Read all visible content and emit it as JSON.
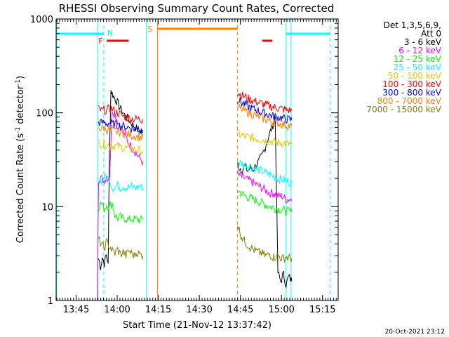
{
  "chart_data": {
    "type": "line",
    "title": "RHESSI Observing Summary Count Rates, Corrected",
    "xlabel": "Start Time (21-Nov-12 13:37:42)",
    "ylabel": "Corrected Count Rate (s⁻¹ detector⁻¹)",
    "ylabel_main": "Corrected Count Rate (s",
    "ylabel_sup": "-1",
    "ylabel_rest": " detector",
    "ylabel_sup2": "-1",
    "ylabel_end": ")",
    "x_unit": "minutes from 13:37:42",
    "xlim": [
      0,
      103
    ],
    "ylim": [
      1,
      1000
    ],
    "yscale": "log",
    "x_ticks": [
      {
        "v": 7.3,
        "label": "13:45"
      },
      {
        "v": 22.3,
        "label": "14:00"
      },
      {
        "v": 37.3,
        "label": "14:15"
      },
      {
        "v": 52.3,
        "label": "14:30"
      },
      {
        "v": 67.3,
        "label": "14:45"
      },
      {
        "v": 82.3,
        "label": "15:00"
      },
      {
        "v": 97.3,
        "label": "15:15"
      }
    ],
    "y_ticks": [
      {
        "v": 1,
        "label": "1"
      },
      {
        "v": 10,
        "label": "10"
      },
      {
        "v": 100,
        "label": "100"
      },
      {
        "v": 1000,
        "label": "1000"
      }
    ],
    "legend": {
      "header1": "Det 1,3,5,6,9,",
      "header2": "Att 0",
      "placement": "right"
    },
    "series": [
      {
        "name": "3 - 6 keV",
        "color": "#000000",
        "segments": [
          {
            "x": [
              15.5,
              16.2,
              16.9,
              17.6,
              18.3,
              19.0,
              19.5,
              20.0,
              20.5,
              21.0,
              22.0,
              23.0,
              24.0,
              25.0,
              26.0,
              27.0,
              28.0,
              29.0,
              30.0,
              31.0,
              31.7
            ],
            "y": [
              2.8,
              2.3,
              2.9,
              2.5,
              3.0,
              2.6,
              40,
              175,
              160,
              150,
              135,
              118,
              105,
              95,
              88,
              82,
              75,
              70,
              66,
              62,
              58
            ]
          },
          {
            "x": [
              66.2,
              67.0,
              68.0,
              69.0,
              70.0,
              71.0,
              72.0,
              73.0,
              74.0,
              75.0,
              76.0,
              77.0,
              78.0,
              78.8,
              79.5,
              80.0,
              81.0,
              82.0,
              83.0,
              84.0,
              85.0,
              86.1
            ],
            "y": [
              28,
              26,
              25,
              27,
              24,
              26,
              25,
              28,
              30,
              34,
              40,
              50,
              60,
              70,
              80,
              95,
              2.0,
              1.6,
              1.9,
              1.5,
              1.8,
              1.6
            ]
          }
        ]
      },
      {
        "name": "6 - 12 keV",
        "color": "#ff00ff",
        "segments": [
          {
            "x": [
              15.0,
              15.5,
              16.5,
              17.5,
              18.5,
              19.5,
              20.5,
              21.5,
              22.5,
              23.5,
              24.5,
              25.5,
              26.5,
              27.5,
              28.5,
              29.5,
              30.5,
              31.7
            ],
            "y": [
              1.0,
              20,
              20,
              19,
              21,
              20,
              110,
              95,
              82,
              72,
              62,
              55,
              48,
              44,
              40,
              36,
              33,
              30
            ]
          },
          {
            "x": [
              66.2,
              67.5,
              69.0,
              70.5,
              72.0,
              73.5,
              75.0,
              76.5,
              78.0,
              79.5,
              81.0,
              82.5,
              84.0,
              86.1
            ],
            "y": [
              22,
              21,
              20,
              19,
              18,
              17,
              16,
              15,
              14,
              14,
              13,
              13,
              12,
              12
            ]
          }
        ]
      },
      {
        "name": "12 - 25 keV",
        "color": "#00ff00",
        "segments": [
          {
            "x": [
              15.5,
              16.5,
              17.5,
              18.5,
              19.5,
              20.5,
              21.5,
              22.5,
              23.5,
              24.5,
              25.5,
              26.5,
              27.5,
              28.5,
              29.5,
              30.5,
              31.7
            ],
            "y": [
              10,
              11,
              9.5,
              10.5,
              10,
              11,
              8.0,
              7.5,
              7.8,
              7.3,
              7.6,
              7.2,
              7.5,
              7.3,
              7.4,
              7.2,
              7.3
            ]
          },
          {
            "x": [
              66.2,
              67.5,
              69.0,
              70.5,
              72.0,
              73.5,
              75.0,
              76.5,
              78.0,
              79.5,
              81.0,
              82.5,
              84.0,
              86.1
            ],
            "y": [
              15,
              14,
              13,
              12.5,
              12,
              11.5,
              11,
              10.5,
              10,
              9.8,
              9.5,
              9.3,
              9.0,
              8.8
            ]
          }
        ]
      },
      {
        "name": "25 - 50 keV",
        "color": "#00ffff",
        "segments": [
          {
            "x": [
              15.5,
              16.5,
              17.5,
              18.5,
              19.5,
              20.5,
              21.5,
              22.5,
              23.5,
              24.5,
              25.5,
              26.5,
              27.5,
              28.5,
              29.5,
              30.5,
              31.7
            ],
            "y": [
              20,
              19,
              21,
              20,
              20,
              16,
              16,
              17,
              16,
              16.5,
              16,
              16,
              16.5,
              16,
              16,
              16.5,
              16
            ]
          },
          {
            "x": [
              66.2,
              67.5,
              69.0,
              70.5,
              72.0,
              73.5,
              75.0,
              76.5,
              78.0,
              79.5,
              81.0,
              82.5,
              84.0,
              86.1
            ],
            "y": [
              30,
              29,
              28,
              27,
              26,
              25,
              24,
              23,
              22,
              21,
              20,
              19.5,
              19,
              18
            ]
          }
        ]
      },
      {
        "name": "50 - 100 keV",
        "color": "#e6c800",
        "segments": [
          {
            "x": [
              15.5,
              16.5,
              17.5,
              18.5,
              19.5,
              20.5,
              21.5,
              22.5,
              23.5,
              24.5,
              25.5,
              26.5,
              27.5,
              28.5,
              29.5,
              30.5,
              31.7
            ],
            "y": [
              48,
              47,
              46,
              46,
              45,
              45,
              44,
              44,
              43,
              43,
              42,
              42,
              41,
              41,
              40,
              40,
              39
            ]
          },
          {
            "x": [
              66.2,
              67.5,
              69.0,
              70.5,
              72.0,
              73.5,
              75.0,
              76.5,
              78.0,
              79.5,
              81.0,
              82.5,
              84.0,
              86.1
            ],
            "y": [
              60,
              58,
              56,
              55,
              54,
              53,
              52,
              51,
              50,
              49,
              48,
              48,
              47,
              46
            ]
          }
        ]
      },
      {
        "name": "100 - 300 keV",
        "color": "#ff0000",
        "segments": [
          {
            "x": [
              15.5,
              16.5,
              17.5,
              18.5,
              19.5,
              20.5,
              21.5,
              22.5,
              23.5,
              24.5,
              25.5,
              26.5,
              27.5,
              28.5,
              29.5,
              30.5,
              31.7
            ],
            "y": [
              110,
              105,
              108,
              106,
              112,
              110,
              104,
              100,
              96,
              92,
              90,
              88,
              87,
              86,
              86,
              85,
              85
            ]
          },
          {
            "x": [
              66.2,
              67.5,
              69.0,
              70.5,
              72.0,
              73.5,
              75.0,
              76.5,
              78.0,
              79.5,
              81.0,
              82.5,
              84.0,
              86.1
            ],
            "y": [
              165,
              155,
              148,
              140,
              135,
              130,
              126,
              122,
              118,
              115,
              113,
              110,
              108,
              105
            ]
          }
        ]
      },
      {
        "name": "300 - 800 keV",
        "color": "#0000ff",
        "segments": [
          {
            "x": [
              15.5,
              16.5,
              17.5,
              18.5,
              19.5,
              20.5,
              21.5,
              22.5,
              23.5,
              24.5,
              25.5,
              26.5,
              27.5,
              28.5,
              29.5,
              30.5,
              31.7
            ],
            "y": [
              80,
              78,
              79,
              77,
              78,
              76,
              75,
              74,
              73,
              72,
              71,
              70,
              69,
              68,
              67,
              66,
              66
            ]
          },
          {
            "x": [
              66.2,
              67.5,
              69.0,
              70.5,
              72.0,
              73.5,
              75.0,
              76.5,
              78.0,
              79.5,
              81.0,
              82.5,
              84.0,
              86.1
            ],
            "y": [
              140,
              130,
              122,
              115,
              110,
              106,
              102,
              98,
              95,
              92,
              90,
              88,
              86,
              84
            ]
          }
        ]
      },
      {
        "name": "800 - 7000 keV",
        "color": "#ff8000",
        "segments": [
          {
            "x": [
              15.5,
              16.5,
              17.5,
              18.5,
              19.5,
              20.5,
              21.5,
              22.5,
              23.5,
              24.5,
              25.5,
              26.5,
              27.5,
              28.5,
              29.5,
              30.5,
              31.7
            ],
            "y": [
              70,
              68,
              69,
              67,
              66,
              65,
              64,
              63,
              62,
              61,
              60,
              59,
              58,
              57,
              56,
              55,
              55
            ]
          },
          {
            "x": [
              66.2,
              67.5,
              69.0,
              70.5,
              72.0,
              73.5,
              75.0,
              76.5,
              78.0,
              79.5,
              81.0,
              82.5,
              84.0,
              86.1
            ],
            "y": [
              115,
              110,
              105,
              100,
              96,
              92,
              88,
              85,
              82,
              80,
              78,
              76,
              74,
              72
            ]
          }
        ]
      },
      {
        "name": "7000 - 15000 keV",
        "color": "#808000",
        "segments": [
          {
            "x": [
              15.5,
              16.5,
              17.5,
              18.5,
              19.5,
              20.5,
              21.5,
              22.5,
              23.5,
              24.5,
              25.5,
              26.5,
              27.5,
              28.5,
              29.5,
              30.5,
              31.7
            ],
            "y": [
              4.5,
              4.0,
              3.6,
              4.2,
              3.8,
              3.4,
              3.2,
              3.5,
              3.1,
              3.3,
              3.0,
              3.4,
              3.2,
              3.0,
              3.3,
              3.1,
              3.0
            ]
          },
          {
            "x": [
              66.2,
              67.5,
              69.0,
              70.5,
              72.0,
              73.5,
              75.0,
              76.5,
              78.0,
              79.5,
              81.0,
              82.5,
              84.0,
              86.1
            ],
            "y": [
              6.5,
              5.0,
              4.2,
              3.8,
              3.5,
              3.3,
              3.2,
              3.0,
              3.1,
              2.9,
              3.0,
              2.8,
              2.9,
              2.8
            ]
          }
        ]
      }
    ],
    "annotations": {
      "flare_label": "F",
      "saa_label": "S",
      "night_label": "N",
      "flare_color": "#ff0000",
      "saa_color": "#ff8000",
      "night_color": "#00ffff",
      "flare_bars": [
        [
          18.5,
          26.5
        ],
        [
          75.3,
          79.0
        ]
      ],
      "saa_bars": [
        [
          37.0,
          66.2
        ]
      ],
      "night_bars": [
        [
          0.2,
          17.4
        ],
        [
          84.0,
          100.0
        ]
      ],
      "night_solid": [
        0.2,
        84.0
      ],
      "night_dashed": [
        17.4,
        100.0
      ],
      "saa_solid": [
        37.0
      ],
      "saa_dashed": [
        66.2
      ],
      "att_solid": [
        15.3,
        33.0,
        85.8
      ]
    },
    "timestamp": "20-Oct-2021 23:12"
  }
}
